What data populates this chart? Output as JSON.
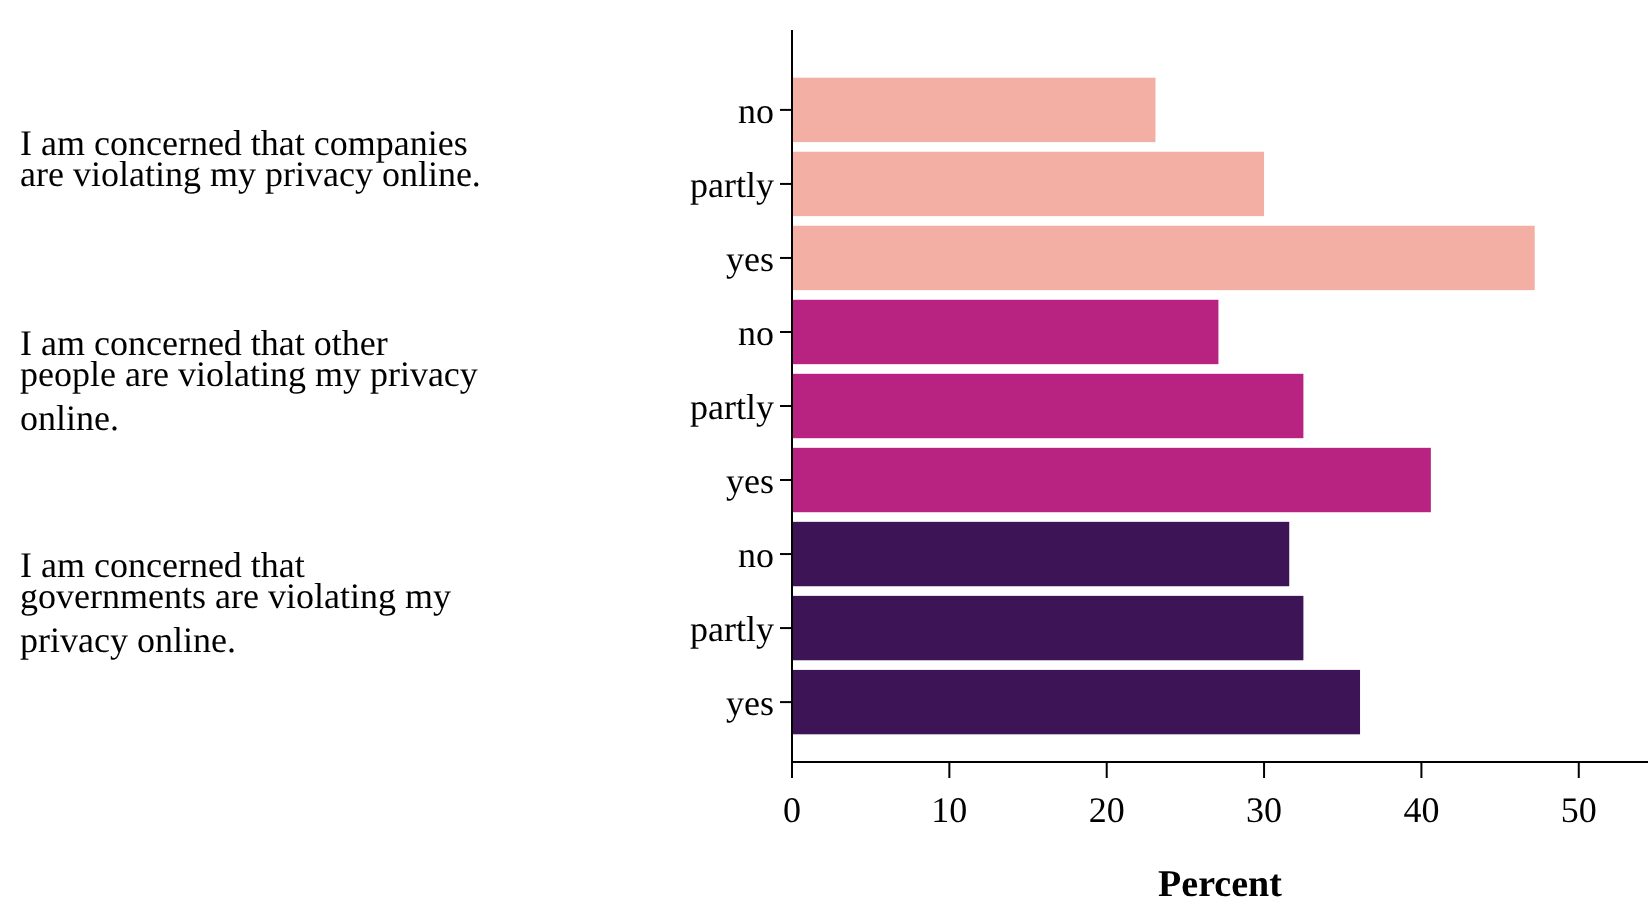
{
  "chart_data": {
    "type": "bar",
    "orientation": "horizontal",
    "xlabel": "Percent",
    "categories": [
      "no",
      "partly",
      "yes",
      "no",
      "partly",
      "yes",
      "no",
      "partly",
      "yes"
    ],
    "values": [
      23.1,
      30.0,
      47.2,
      27.1,
      32.5,
      40.6,
      31.6,
      32.5,
      36.1
    ],
    "colors": [
      "#f4afa5",
      "#f4afa5",
      "#f4afa5",
      "#b82381",
      "#b82381",
      "#b82381",
      "#3d1456",
      "#3d1456",
      "#3d1456"
    ],
    "xlim": [
      0,
      54.4
    ],
    "xticks": [
      0,
      10,
      20,
      30,
      40,
      50
    ],
    "grid": false,
    "annotations": [
      "I am concerned that companies are violating my privacy online.",
      "I am concerned that other people are violating my privacy online.",
      "I am concerned that governments are violating my privacy online."
    ]
  }
}
